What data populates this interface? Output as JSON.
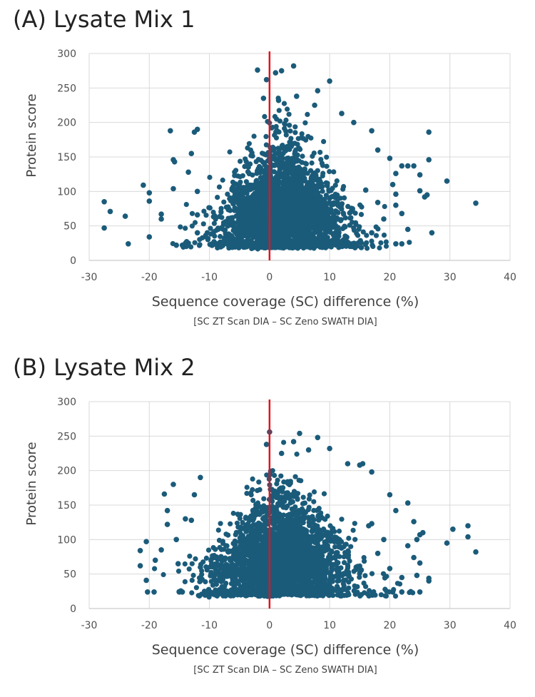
{
  "chart_data": [
    {
      "type": "scatter",
      "title": "(A) Lysate Mix 1",
      "xlabel": "Sequence coverage (SC) difference (%)",
      "xlabel_sub": "[SC ZT Scan DIA – SC Zeno SWATH DIA]",
      "ylabel": "Protein score",
      "xlim": [
        -30,
        40
      ],
      "ylim": [
        0,
        300
      ],
      "xticks": [
        "-30",
        "-20",
        "-10",
        "0",
        "10",
        "20",
        "30",
        "40"
      ],
      "yticks": [
        "0",
        "50",
        "100",
        "150",
        "200",
        "250",
        "300"
      ],
      "grid": true,
      "reference_line_x": 0,
      "point_color": "#1b5b7a",
      "reference_line_color": "#e0141e",
      "points": [
        [
          -27.5,
          85
        ],
        [
          -27.5,
          47
        ],
        [
          -26.5,
          71
        ],
        [
          -24,
          64
        ],
        [
          -23.5,
          24
        ],
        [
          -21,
          109
        ],
        [
          -20,
          98
        ],
        [
          -20,
          86
        ],
        [
          -20,
          34
        ],
        [
          -18,
          67
        ],
        [
          -18,
          60
        ],
        [
          -16.5,
          188
        ],
        [
          -16,
          146
        ],
        [
          -15.8,
          143
        ],
        [
          -16,
          104
        ],
        [
          -15.5,
          22
        ],
        [
          -14.5,
          22
        ],
        [
          -14,
          24
        ],
        [
          -13.5,
          128
        ],
        [
          -13,
          155
        ],
        [
          -12.5,
          186
        ],
        [
          -12,
          190
        ],
        [
          -12,
          100
        ],
        [
          -12,
          66
        ],
        [
          -12,
          40
        ],
        [
          -2,
          276
        ],
        [
          4,
          282
        ],
        [
          2,
          275
        ],
        [
          1,
          272
        ],
        [
          -0.5,
          262
        ],
        [
          10,
          260
        ],
        [
          8,
          246
        ],
        [
          4.5,
          238
        ],
        [
          -1,
          235
        ],
        [
          1.5,
          232
        ],
        [
          7.5,
          225
        ],
        [
          12,
          213
        ],
        [
          14,
          200
        ],
        [
          17,
          188
        ],
        [
          18,
          160
        ],
        [
          20,
          148
        ],
        [
          22,
          137
        ],
        [
          23,
          137
        ],
        [
          21,
          126
        ],
        [
          20.5,
          110
        ],
        [
          21,
          96
        ],
        [
          21,
          80
        ],
        [
          22,
          68
        ],
        [
          23,
          45
        ],
        [
          21,
          24
        ],
        [
          22,
          24
        ],
        [
          26.5,
          186
        ],
        [
          26.5,
          146
        ],
        [
          26.2,
          95
        ],
        [
          25.8,
          92
        ],
        [
          25,
          124
        ],
        [
          27,
          40
        ],
        [
          29.5,
          115
        ],
        [
          34.3,
          83
        ],
        [
          16,
          102
        ],
        [
          18,
          84
        ],
        [
          19,
          60
        ],
        [
          24,
          137
        ],
        [
          25,
          101
        ],
        [
          17,
          40
        ]
      ],
      "cloud": {
        "x_center": 2,
        "x_spread": 5.5,
        "y_min": 14,
        "y_peak": 130,
        "count": 2400
      }
    },
    {
      "type": "scatter",
      "title": "(B) Lysate Mix 2",
      "xlabel": "Sequence coverage (SC) difference (%)",
      "xlabel_sub": "[SC ZT Scan DIA – SC Zeno SWATH DIA]",
      "ylabel": "Protein score",
      "xlim": [
        -30,
        40
      ],
      "ylim": [
        0,
        300
      ],
      "xticks": [
        "-30",
        "-20",
        "-10",
        "0",
        "10",
        "20",
        "30",
        "40"
      ],
      "yticks": [
        "0",
        "50",
        "100",
        "150",
        "200",
        "250",
        "300"
      ],
      "grid": true,
      "reference_line_x": 0,
      "point_color": "#1b5b7a",
      "reference_line_color": "#e0141e",
      "points": [
        [
          -21.5,
          84
        ],
        [
          -21.5,
          62
        ],
        [
          -20.5,
          97
        ],
        [
          -20.5,
          41
        ],
        [
          -20.3,
          24
        ],
        [
          -19.2,
          24
        ],
        [
          -19,
          70
        ],
        [
          -18,
          85
        ],
        [
          -17.5,
          166
        ],
        [
          -17,
          142
        ],
        [
          -17,
          122
        ],
        [
          -16,
          180
        ],
        [
          -15.5,
          100
        ],
        [
          -15.2,
          65
        ],
        [
          -15,
          24
        ],
        [
          -14.5,
          24
        ],
        [
          -14,
          130
        ],
        [
          -13,
          128
        ],
        [
          -12.5,
          165
        ],
        [
          -11.5,
          190
        ],
        [
          -11.5,
          60
        ],
        [
          0,
          256
        ],
        [
          -0.5,
          238
        ],
        [
          5,
          254
        ],
        [
          8,
          248
        ],
        [
          4,
          242
        ],
        [
          2,
          225
        ],
        [
          10,
          232
        ],
        [
          6.5,
          230
        ],
        [
          13,
          210
        ],
        [
          15,
          208
        ],
        [
          15.5,
          210
        ],
        [
          17,
          198
        ],
        [
          20,
          165
        ],
        [
          21,
          142
        ],
        [
          23,
          153
        ],
        [
          24,
          126
        ],
        [
          25,
          107
        ],
        [
          24.5,
          100
        ],
        [
          23,
          91
        ],
        [
          24,
          74
        ],
        [
          25,
          66
        ],
        [
          24.5,
          48
        ],
        [
          25.5,
          110
        ],
        [
          26.5,
          44
        ],
        [
          26.5,
          40
        ],
        [
          25,
          24
        ],
        [
          22,
          24
        ],
        [
          20.5,
          24
        ],
        [
          29.5,
          95
        ],
        [
          30.5,
          115
        ],
        [
          33,
          120
        ],
        [
          33,
          104
        ],
        [
          34.3,
          82
        ],
        [
          17,
          123
        ],
        [
          19,
          100
        ],
        [
          18,
          80
        ],
        [
          20,
          58
        ],
        [
          22,
          45
        ],
        [
          16.5,
          120
        ]
      ],
      "cloud": {
        "x_center": 2,
        "x_spread": 6,
        "y_min": 14,
        "y_peak": 130,
        "count": 2400
      }
    }
  ]
}
